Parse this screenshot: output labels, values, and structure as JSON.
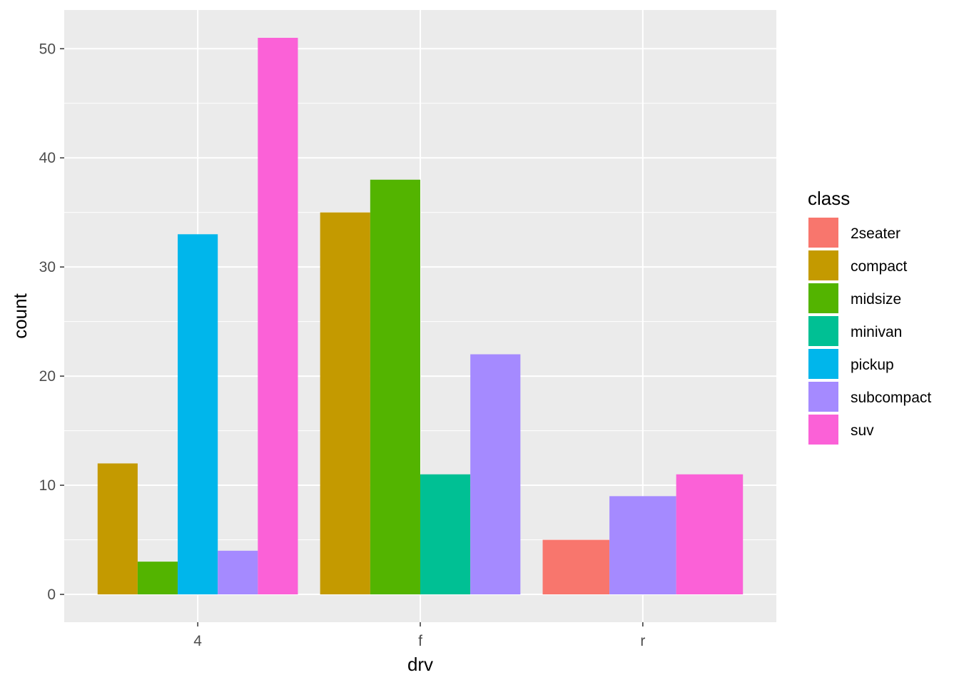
{
  "chart_data": {
    "type": "bar",
    "position": "dodge",
    "xlabel": "drv",
    "ylabel": "count",
    "categories": [
      "4",
      "f",
      "r"
    ],
    "ylim": [
      -2.55,
      53.55
    ],
    "yticks": [
      0,
      10,
      20,
      30,
      40,
      50
    ],
    "grid": true,
    "legend": {
      "title": "class",
      "placement": "right",
      "items": [
        {
          "name": "2seater",
          "color": "#F8766D"
        },
        {
          "name": "compact",
          "color": "#C49A00"
        },
        {
          "name": "midsize",
          "color": "#53B400"
        },
        {
          "name": "minivan",
          "color": "#00C094"
        },
        {
          "name": "pickup",
          "color": "#00B6EB"
        },
        {
          "name": "subcompact",
          "color": "#A58AFF"
        },
        {
          "name": "suv",
          "color": "#FB61D7"
        }
      ]
    },
    "groups": [
      {
        "category": "4",
        "bars": [
          {
            "class": "compact",
            "value": 12
          },
          {
            "class": "midsize",
            "value": 3
          },
          {
            "class": "pickup",
            "value": 33
          },
          {
            "class": "subcompact",
            "value": 4
          },
          {
            "class": "suv",
            "value": 51
          }
        ]
      },
      {
        "category": "f",
        "bars": [
          {
            "class": "compact",
            "value": 35
          },
          {
            "class": "midsize",
            "value": 38
          },
          {
            "class": "minivan",
            "value": 11
          },
          {
            "class": "subcompact",
            "value": 22
          }
        ]
      },
      {
        "category": "r",
        "bars": [
          {
            "class": "2seater",
            "value": 5
          },
          {
            "class": "subcompact",
            "value": 9
          },
          {
            "class": "suv",
            "value": 11
          }
        ]
      }
    ]
  }
}
